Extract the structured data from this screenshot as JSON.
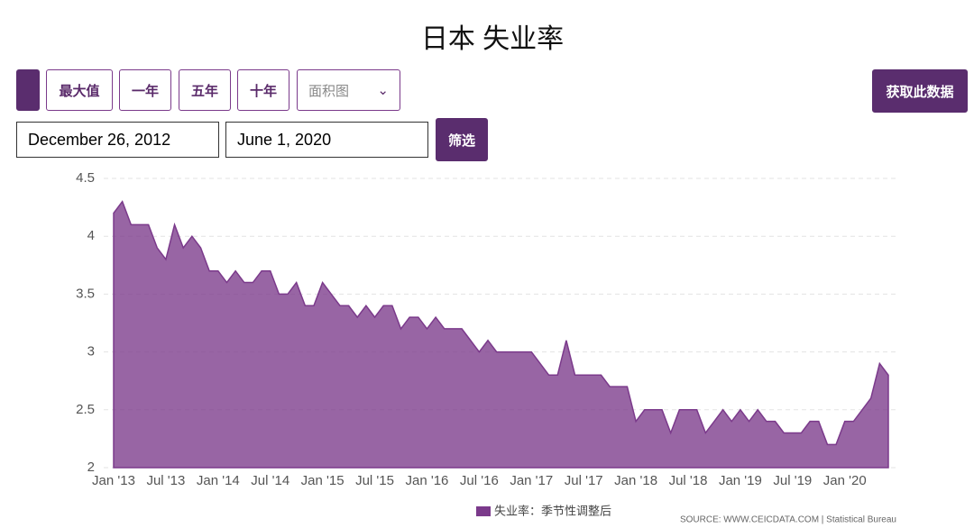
{
  "controls": {
    "range_buttons": [
      "最大值",
      "一年",
      "五年",
      "十年"
    ],
    "chart_type_select": "面积图",
    "download_button": "获取此数据",
    "start_date": "December 26, 2012",
    "end_date": "June 1, 2020",
    "filter_button": "筛选"
  },
  "chart_data": {
    "type": "area",
    "title": "日本 失业率",
    "categories": [
      "Jan '13",
      null,
      null,
      null,
      null,
      null,
      "Jul '13",
      null,
      null,
      null,
      null,
      null,
      "Jan '14",
      null,
      null,
      null,
      null,
      null,
      "Jul '14",
      null,
      null,
      null,
      null,
      null,
      "Jan '15",
      null,
      null,
      null,
      null,
      null,
      "Jul '15",
      null,
      null,
      null,
      null,
      null,
      "Jan '16",
      null,
      null,
      null,
      null,
      null,
      "Jul '16",
      null,
      null,
      null,
      null,
      null,
      "Jan '17",
      null,
      null,
      null,
      null,
      null,
      "Jul '17",
      null,
      null,
      null,
      null,
      null,
      "Jan '18",
      null,
      null,
      null,
      null,
      null,
      "Jul '18",
      null,
      null,
      null,
      null,
      null,
      "Jan '19",
      null,
      null,
      null,
      null,
      null,
      "Jul '19",
      null,
      null,
      null,
      null,
      null,
      "Jan '20",
      null,
      null,
      null,
      null,
      null
    ],
    "series": [
      {
        "name": "失业率：季节性调整后",
        "color": "#7b3a8b",
        "values": [
          4.2,
          4.3,
          4.1,
          4.1,
          4.1,
          3.9,
          3.8,
          4.1,
          3.9,
          4.0,
          3.9,
          3.7,
          3.7,
          3.6,
          3.7,
          3.6,
          3.6,
          3.7,
          3.7,
          3.5,
          3.5,
          3.6,
          3.4,
          3.4,
          3.6,
          3.5,
          3.4,
          3.4,
          3.3,
          3.4,
          3.3,
          3.4,
          3.4,
          3.2,
          3.3,
          3.3,
          3.2,
          3.3,
          3.2,
          3.2,
          3.2,
          3.1,
          3.0,
          3.1,
          3.0,
          3.0,
          3.0,
          3.0,
          3.0,
          2.9,
          2.8,
          2.8,
          3.1,
          2.8,
          2.8,
          2.8,
          2.8,
          2.7,
          2.7,
          2.7,
          2.4,
          2.5,
          2.5,
          2.5,
          2.3,
          2.5,
          2.5,
          2.5,
          2.3,
          2.4,
          2.5,
          2.4,
          2.5,
          2.4,
          2.5,
          2.4,
          2.4,
          2.3,
          2.3,
          2.3,
          2.4,
          2.4,
          2.2,
          2.2,
          2.4,
          2.4,
          2.5,
          2.6,
          2.9,
          2.8
        ]
      }
    ],
    "ylim": [
      2,
      4.5
    ],
    "yticks": [
      2,
      2.5,
      3,
      3.5,
      4,
      4.5
    ],
    "grid": true,
    "source": "SOURCE: WWW.CEICDATA.COM | Statistical Bureau"
  }
}
